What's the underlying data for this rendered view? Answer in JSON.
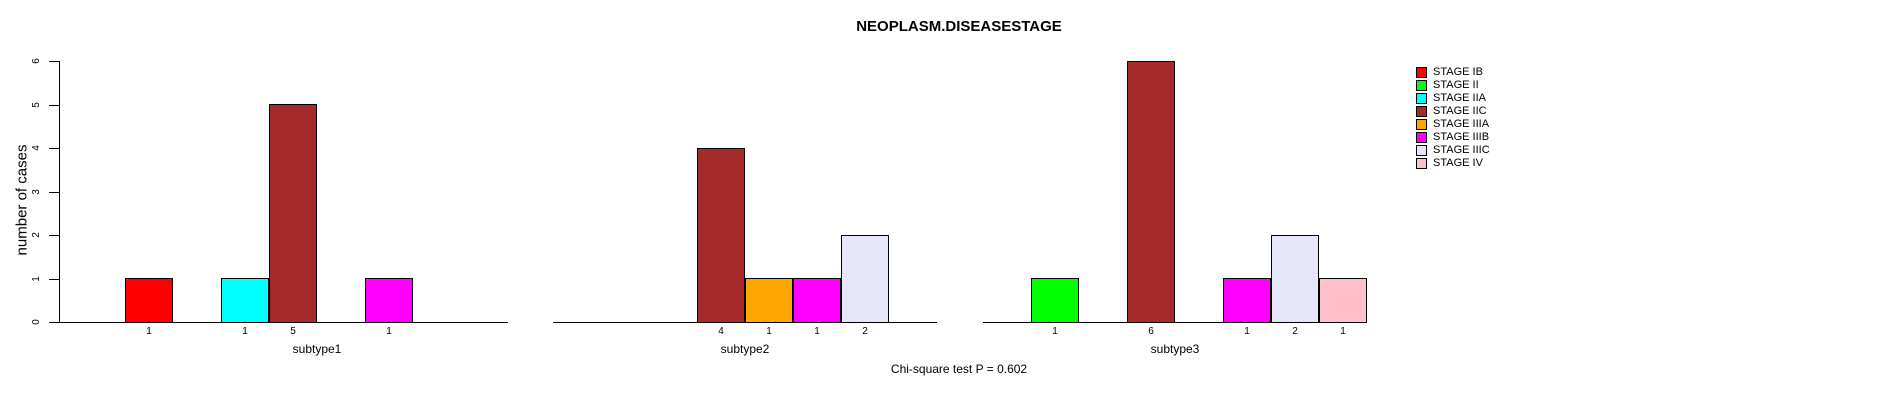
{
  "title": "NEOPLASM.DISEASESTAGE",
  "footnote": "Chi-square test P = 0.602",
  "ylabel": "number of cases",
  "chart_data": {
    "type": "bar",
    "title": "NEOPLASM.DISEASESTAGE",
    "xlabel": "",
    "ylabel": "number of cases",
    "ylim": [
      0,
      6
    ],
    "yticks": [
      0,
      1,
      2,
      3,
      4,
      5,
      6
    ],
    "grid": false,
    "legend_position": "right",
    "annotation": "Chi-square test P = 0.602",
    "categories": [
      "STAGE IB",
      "STAGE II",
      "STAGE IIA",
      "STAGE IIC",
      "STAGE IIIA",
      "STAGE IIIB",
      "STAGE IIIC",
      "STAGE IV"
    ],
    "category_colors": [
      "#FF0000",
      "#00FF00",
      "#00FFFF",
      "#A52A2A",
      "#FFA500",
      "#FF00FF",
      "#E6E6FA",
      "#FFC0CB"
    ],
    "series": [
      {
        "name": "subtype1",
        "values": [
          1,
          0,
          1,
          5,
          0,
          1,
          0,
          0
        ]
      },
      {
        "name": "subtype2",
        "values": [
          0,
          0,
          0,
          4,
          1,
          1,
          2,
          0
        ]
      },
      {
        "name": "subtype3",
        "values": [
          0,
          1,
          0,
          6,
          0,
          1,
          2,
          1
        ]
      }
    ],
    "bar_value_labels_shown_for_nonzero_only": true
  },
  "legend": {
    "entries": [
      {
        "label": "STAGE IB",
        "color": "#FF0000"
      },
      {
        "label": "STAGE II",
        "color": "#00FF00"
      },
      {
        "label": "STAGE IIA",
        "color": "#00FFFF"
      },
      {
        "label": "STAGE IIC",
        "color": "#A52A2A"
      },
      {
        "label": "STAGE IIIA",
        "color": "#FFA500"
      },
      {
        "label": "STAGE IIIB",
        "color": "#FF00FF"
      },
      {
        "label": "STAGE IIIC",
        "color": "#E6E6FA"
      },
      {
        "label": "STAGE IV",
        "color": "#FFC0CB"
      }
    ]
  }
}
